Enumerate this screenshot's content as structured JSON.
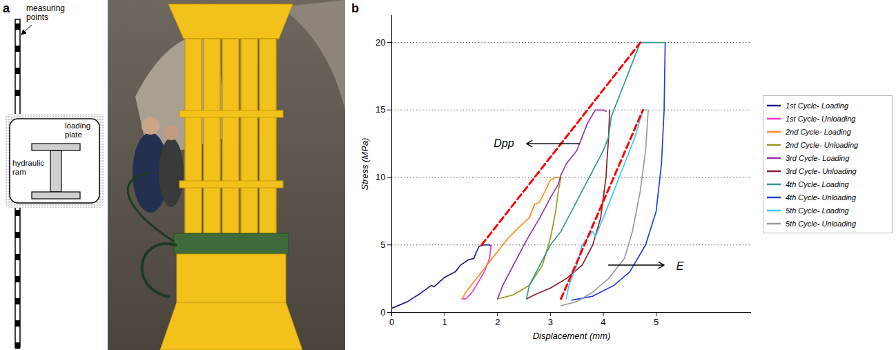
{
  "panel_labels": [
    "a",
    "b"
  ],
  "diagram": {
    "measuring_label": "measuring points",
    "plate_label": "loading plate",
    "ram_label": "hydraulic ram"
  },
  "chart_data": {
    "type": "line",
    "x_label": "Displacement (mm)",
    "y_label": "Stress (MPa)",
    "xlim": [
      0,
      6.8
    ],
    "xticks": [
      0,
      1,
      2,
      3,
      4,
      5
    ],
    "ylim": [
      0,
      22
    ],
    "yticks": [
      0,
      5,
      10,
      15,
      20
    ],
    "grid": true,
    "legend": "right",
    "series": [
      {
        "name": "1st Cycle- Loading",
        "color": "#1c1c8c",
        "x": [
          0,
          0.3,
          0.5,
          0.75,
          0.8,
          1.0,
          1.2,
          1.3,
          1.45,
          1.55,
          1.65,
          1.75,
          1.85,
          1.88
        ],
        "values": [
          0.3,
          0.8,
          1.3,
          2.0,
          1.9,
          2.6,
          3.0,
          3.5,
          3.9,
          4.0,
          4.9,
          5.0,
          5.0,
          4.9
        ]
      },
      {
        "name": "1st Cycle- Unloading",
        "color": "#ff33cc",
        "x": [
          1.88,
          1.85,
          1.75,
          1.6,
          1.5,
          1.4,
          1.33
        ],
        "values": [
          5.0,
          4.0,
          3.0,
          2.0,
          1.4,
          1.0,
          1.0
        ]
      },
      {
        "name": "2nd Cycle- Loading",
        "color": "#ff8c1a",
        "x": [
          1.33,
          1.4,
          1.6,
          1.8,
          2.0,
          2.2,
          2.4,
          2.6,
          2.7,
          2.8,
          2.9,
          3.0,
          3.1,
          3.2
        ],
        "values": [
          1.0,
          1.5,
          2.5,
          3.5,
          4.5,
          5.5,
          6.3,
          7.0,
          8.0,
          8.2,
          9.0,
          9.8,
          10.0,
          10.0
        ]
      },
      {
        "name": "2nd Cycle- Unloading",
        "color": "#9a9a1f",
        "x": [
          3.2,
          3.15,
          3.1,
          3.0,
          2.85,
          2.6,
          2.3,
          2.0
        ],
        "values": [
          10.0,
          9.0,
          7.5,
          5.5,
          3.5,
          2.0,
          1.3,
          1.0
        ]
      },
      {
        "name": "3rd Cycle- Loading",
        "color": "#9933aa",
        "x": [
          2.0,
          2.1,
          2.3,
          2.5,
          2.6,
          2.8,
          3.0,
          3.15,
          3.2,
          3.3,
          3.5,
          3.6,
          3.7,
          3.85,
          4.0,
          4.05
        ],
        "values": [
          1.0,
          2.0,
          3.5,
          5.0,
          5.7,
          7.0,
          8.5,
          9.5,
          10.2,
          11.0,
          12.0,
          13.0,
          14.0,
          15.0,
          15.0,
          14.9
        ]
      },
      {
        "name": "3rd Cycle- Unloading",
        "color": "#8b1c2c",
        "x": [
          4.12,
          4.1,
          4.05,
          3.95,
          3.8,
          3.6,
          3.3,
          3.0,
          2.7,
          2.55
        ],
        "values": [
          15.0,
          13.0,
          10.0,
          7.0,
          5.0,
          3.5,
          2.5,
          1.8,
          1.3,
          1.0
        ]
      },
      {
        "name": "4th Cycle- Loading",
        "color": "#2b9c8e",
        "x": [
          2.55,
          2.6,
          2.8,
          3.0,
          3.2,
          3.4,
          3.6,
          3.8,
          4.0,
          4.1,
          4.15,
          4.3,
          4.5,
          4.65,
          4.7,
          5.0,
          5.15
        ],
        "values": [
          1.0,
          2.0,
          3.5,
          5.0,
          6.0,
          7.5,
          9.0,
          10.5,
          12.0,
          13.0,
          14.5,
          16.0,
          18.0,
          19.5,
          20.0,
          20.0,
          20.0
        ]
      },
      {
        "name": "4th Cycle- Unloading",
        "color": "#2140d9",
        "x": [
          5.17,
          5.15,
          5.1,
          5.0,
          4.8,
          4.5,
          4.2,
          3.8,
          3.4
        ],
        "values": [
          20.0,
          15.0,
          11.0,
          7.5,
          5.0,
          3.0,
          2.0,
          1.2,
          0.9
        ]
      },
      {
        "name": "5th Cycle- Loading",
        "color": "#33ccff",
        "x": [
          3.3,
          3.35,
          3.5,
          3.6,
          3.8,
          3.85,
          4.0,
          4.2,
          4.4,
          4.6,
          4.75,
          4.8
        ],
        "values": [
          1.0,
          2.0,
          3.5,
          5.0,
          6.0,
          5.6,
          7.0,
          9.0,
          11.0,
          13.0,
          15.0,
          15.0
        ]
      },
      {
        "name": "5th Cycle- Unloading",
        "color": "#9a9a9a",
        "x": [
          4.85,
          4.8,
          4.7,
          4.55,
          4.4,
          4.1,
          3.8,
          3.5,
          3.2
        ],
        "values": [
          15.0,
          12.0,
          9.0,
          6.0,
          4.0,
          2.5,
          1.5,
          0.8,
          0.5
        ]
      }
    ],
    "reference_lines": [
      {
        "x": [
          1.7,
          4.7
        ],
        "values": [
          5,
          20
        ],
        "color": "#ff0000",
        "line_style": "dashed"
      },
      {
        "x": [
          3.2,
          4.75
        ],
        "values": [
          1,
          15
        ],
        "color": "#ff0000",
        "line_style": "dashed"
      }
    ],
    "annotations": [
      {
        "text": "Dpp",
        "x": 2.12,
        "y": 12.5,
        "arrow_x": [
          3.55,
          2.55
        ],
        "arrow_y": [
          12.5,
          12.5
        ]
      },
      {
        "text": "E",
        "x": 5.45,
        "y": 3.4,
        "arrow_x": [
          4.1,
          5.15
        ],
        "arrow_y": [
          3.5,
          3.5
        ]
      }
    ]
  }
}
